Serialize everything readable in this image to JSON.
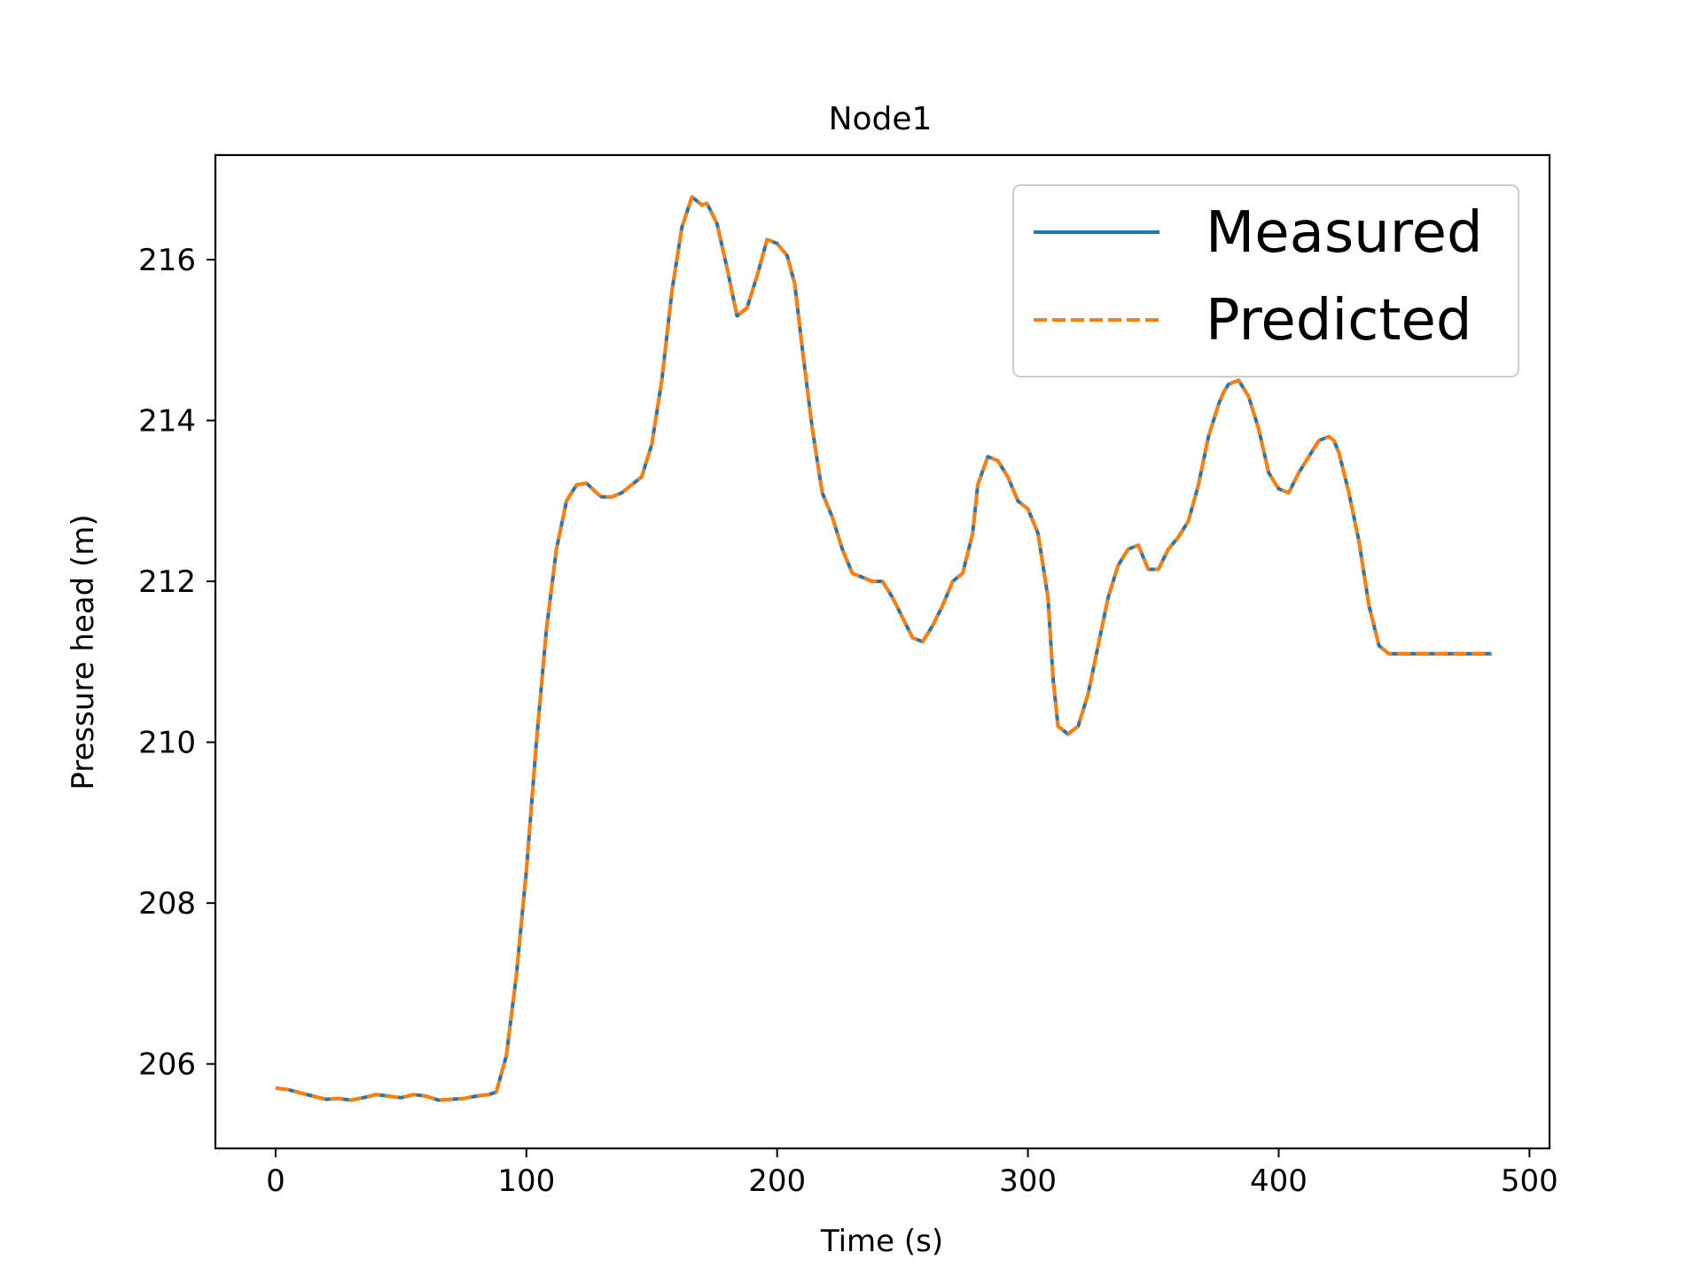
{
  "chart_data": {
    "type": "line",
    "title": "Node1",
    "xlabel": "Time (s)",
    "ylabel": "Pressure head (m)",
    "xlim": [
      -24,
      508
    ],
    "ylim": [
      204.95,
      217.3
    ],
    "xticks": [
      0,
      100,
      200,
      300,
      400,
      500
    ],
    "yticks": [
      206,
      208,
      210,
      212,
      214,
      216
    ],
    "grid": false,
    "legend_position": "top-right",
    "x": [
      0,
      5,
      10,
      15,
      20,
      25,
      30,
      35,
      40,
      45,
      50,
      55,
      60,
      65,
      70,
      75,
      80,
      85,
      88,
      92,
      96,
      100,
      104,
      108,
      112,
      116,
      120,
      124,
      128,
      130,
      134,
      138,
      142,
      146,
      150,
      154,
      158,
      162,
      166,
      170,
      172,
      176,
      180,
      184,
      188,
      192,
      196,
      200,
      204,
      207,
      210,
      214,
      218,
      222,
      226,
      230,
      234,
      238,
      242,
      246,
      250,
      254,
      258,
      262,
      266,
      270,
      274,
      278,
      280,
      284,
      288,
      292,
      296,
      300,
      304,
      308,
      310,
      312,
      316,
      320,
      324,
      328,
      332,
      336,
      340,
      344,
      348,
      352,
      356,
      360,
      364,
      368,
      372,
      376,
      378,
      380,
      384,
      388,
      392,
      396,
      400,
      404,
      408,
      412,
      416,
      420,
      422,
      424,
      428,
      432,
      436,
      440,
      444,
      448,
      452,
      456,
      460,
      462,
      466,
      470,
      474,
      478,
      482,
      485
    ],
    "series": [
      {
        "name": "Measured",
        "color": "#1f77b4",
        "style": "solid",
        "values": [
          205.7,
          205.68,
          205.64,
          205.6,
          205.56,
          205.57,
          205.55,
          205.58,
          205.62,
          205.6,
          205.58,
          205.62,
          205.6,
          205.55,
          205.56,
          205.57,
          205.6,
          205.62,
          205.65,
          206.1,
          207.1,
          208.4,
          210.0,
          211.4,
          212.4,
          213.0,
          213.2,
          213.22,
          213.1,
          213.05,
          213.05,
          213.1,
          213.2,
          213.3,
          213.7,
          214.5,
          215.6,
          216.4,
          216.78,
          216.68,
          216.7,
          216.45,
          215.9,
          215.3,
          215.4,
          215.8,
          216.25,
          216.2,
          216.05,
          215.7,
          214.9,
          213.9,
          213.1,
          212.8,
          212.4,
          212.1,
          212.05,
          212.0,
          212.0,
          211.8,
          211.55,
          211.3,
          211.25,
          211.45,
          211.7,
          212.0,
          212.1,
          212.6,
          213.2,
          213.55,
          213.5,
          213.3,
          213.0,
          212.9,
          212.6,
          211.8,
          210.8,
          210.2,
          210.1,
          210.2,
          210.6,
          211.2,
          211.8,
          212.2,
          212.4,
          212.45,
          212.15,
          212.15,
          212.4,
          212.55,
          212.75,
          213.2,
          213.8,
          214.2,
          214.35,
          214.45,
          214.5,
          214.3,
          213.9,
          213.35,
          213.15,
          213.1,
          213.35,
          213.55,
          213.75,
          213.8,
          213.75,
          213.6,
          213.1,
          212.5,
          211.7,
          211.2,
          211.1,
          211.1,
          211.1,
          211.1,
          211.1,
          211.1,
          211.1,
          211.1,
          211.1,
          211.1,
          211.1,
          211.1
        ]
      },
      {
        "name": "Predicted",
        "color": "#ff7f0e",
        "style": "dashed",
        "values": [
          205.7,
          205.68,
          205.64,
          205.6,
          205.56,
          205.57,
          205.55,
          205.58,
          205.62,
          205.6,
          205.58,
          205.62,
          205.6,
          205.55,
          205.56,
          205.57,
          205.6,
          205.62,
          205.65,
          206.1,
          207.1,
          208.4,
          210.0,
          211.4,
          212.4,
          213.0,
          213.2,
          213.22,
          213.1,
          213.05,
          213.05,
          213.1,
          213.2,
          213.3,
          213.7,
          214.5,
          215.6,
          216.4,
          216.78,
          216.68,
          216.7,
          216.45,
          215.9,
          215.3,
          215.4,
          215.8,
          216.25,
          216.2,
          216.05,
          215.7,
          214.9,
          213.9,
          213.1,
          212.8,
          212.4,
          212.1,
          212.05,
          212.0,
          212.0,
          211.8,
          211.55,
          211.3,
          211.25,
          211.45,
          211.7,
          212.0,
          212.1,
          212.6,
          213.2,
          213.55,
          213.5,
          213.3,
          213.0,
          212.9,
          212.6,
          211.8,
          210.8,
          210.2,
          210.1,
          210.2,
          210.6,
          211.2,
          211.8,
          212.2,
          212.4,
          212.45,
          212.15,
          212.15,
          212.4,
          212.55,
          212.75,
          213.2,
          213.8,
          214.2,
          214.35,
          214.45,
          214.5,
          214.3,
          213.9,
          213.35,
          213.15,
          213.1,
          213.35,
          213.55,
          213.75,
          213.8,
          213.75,
          213.6,
          213.1,
          212.5,
          211.7,
          211.2,
          211.1,
          211.1,
          211.1,
          211.1,
          211.1,
          211.1,
          211.1,
          211.1,
          211.1,
          211.1,
          211.1,
          211.1
        ]
      }
    ]
  }
}
